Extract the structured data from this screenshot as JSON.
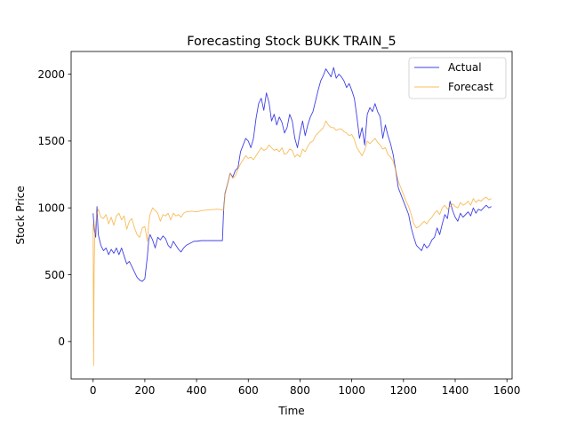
{
  "chart_data": {
    "type": "line",
    "title": "Forecasting Stock BUKK TRAIN_5",
    "xlabel": "Time",
    "ylabel": "Stock Price",
    "xlim": [
      -85,
      1620
    ],
    "ylim": [
      -280,
      2170
    ],
    "xticks": [
      0,
      200,
      400,
      600,
      800,
      1000,
      1200,
      1400,
      1600
    ],
    "yticks": [
      0,
      500,
      1000,
      1500,
      2000
    ],
    "grid": false,
    "legend_position": "top-right",
    "series": [
      {
        "name": "Actual",
        "color": "#0000dd",
        "points": [
          [
            0,
            960
          ],
          [
            5,
            830
          ],
          [
            10,
            780
          ],
          [
            15,
            1010
          ],
          [
            20,
            800
          ],
          [
            30,
            720
          ],
          [
            40,
            680
          ],
          [
            50,
            700
          ],
          [
            60,
            650
          ],
          [
            70,
            690
          ],
          [
            80,
            660
          ],
          [
            90,
            700
          ],
          [
            100,
            650
          ],
          [
            110,
            700
          ],
          [
            120,
            640
          ],
          [
            130,
            580
          ],
          [
            140,
            600
          ],
          [
            150,
            560
          ],
          [
            160,
            520
          ],
          [
            170,
            480
          ],
          [
            180,
            460
          ],
          [
            190,
            450
          ],
          [
            200,
            470
          ],
          [
            210,
            640
          ],
          [
            215,
            760
          ],
          [
            220,
            800
          ],
          [
            230,
            760
          ],
          [
            240,
            700
          ],
          [
            250,
            780
          ],
          [
            260,
            760
          ],
          [
            270,
            790
          ],
          [
            280,
            770
          ],
          [
            290,
            720
          ],
          [
            300,
            700
          ],
          [
            310,
            750
          ],
          [
            320,
            720
          ],
          [
            330,
            690
          ],
          [
            340,
            670
          ],
          [
            350,
            700
          ],
          [
            360,
            720
          ],
          [
            370,
            730
          ],
          [
            380,
            740
          ],
          [
            390,
            750
          ],
          [
            400,
            750
          ],
          [
            420,
            755
          ],
          [
            450,
            755
          ],
          [
            480,
            755
          ],
          [
            500,
            755
          ],
          [
            505,
            1000
          ],
          [
            510,
            1110
          ],
          [
            520,
            1180
          ],
          [
            530,
            1260
          ],
          [
            540,
            1230
          ],
          [
            550,
            1280
          ],
          [
            560,
            1300
          ],
          [
            570,
            1420
          ],
          [
            580,
            1470
          ],
          [
            590,
            1520
          ],
          [
            600,
            1500
          ],
          [
            610,
            1450
          ],
          [
            620,
            1520
          ],
          [
            630,
            1670
          ],
          [
            640,
            1780
          ],
          [
            650,
            1820
          ],
          [
            660,
            1730
          ],
          [
            670,
            1860
          ],
          [
            680,
            1790
          ],
          [
            690,
            1650
          ],
          [
            700,
            1700
          ],
          [
            710,
            1620
          ],
          [
            720,
            1680
          ],
          [
            730,
            1640
          ],
          [
            740,
            1560
          ],
          [
            750,
            1600
          ],
          [
            760,
            1700
          ],
          [
            770,
            1650
          ],
          [
            780,
            1520
          ],
          [
            790,
            1450
          ],
          [
            800,
            1560
          ],
          [
            810,
            1650
          ],
          [
            820,
            1540
          ],
          [
            830,
            1620
          ],
          [
            840,
            1680
          ],
          [
            850,
            1720
          ],
          [
            860,
            1800
          ],
          [
            870,
            1880
          ],
          [
            880,
            1950
          ],
          [
            890,
            1990
          ],
          [
            900,
            2040
          ],
          [
            910,
            2010
          ],
          [
            920,
            1980
          ],
          [
            930,
            2050
          ],
          [
            940,
            1970
          ],
          [
            950,
            2000
          ],
          [
            960,
            1980
          ],
          [
            970,
            1950
          ],
          [
            980,
            1900
          ],
          [
            990,
            1930
          ],
          [
            1000,
            1880
          ],
          [
            1010,
            1820
          ],
          [
            1020,
            1680
          ],
          [
            1030,
            1520
          ],
          [
            1040,
            1600
          ],
          [
            1050,
            1470
          ],
          [
            1060,
            1700
          ],
          [
            1070,
            1750
          ],
          [
            1080,
            1720
          ],
          [
            1090,
            1780
          ],
          [
            1100,
            1720
          ],
          [
            1110,
            1680
          ],
          [
            1120,
            1520
          ],
          [
            1130,
            1620
          ],
          [
            1140,
            1540
          ],
          [
            1150,
            1480
          ],
          [
            1160,
            1400
          ],
          [
            1170,
            1280
          ],
          [
            1180,
            1150
          ],
          [
            1190,
            1100
          ],
          [
            1200,
            1050
          ],
          [
            1210,
            1000
          ],
          [
            1220,
            950
          ],
          [
            1230,
            850
          ],
          [
            1240,
            780
          ],
          [
            1250,
            720
          ],
          [
            1260,
            700
          ],
          [
            1270,
            680
          ],
          [
            1280,
            730
          ],
          [
            1290,
            700
          ],
          [
            1300,
            720
          ],
          [
            1310,
            760
          ],
          [
            1320,
            780
          ],
          [
            1330,
            850
          ],
          [
            1340,
            800
          ],
          [
            1350,
            880
          ],
          [
            1360,
            950
          ],
          [
            1370,
            920
          ],
          [
            1380,
            1050
          ],
          [
            1390,
            980
          ],
          [
            1400,
            930
          ],
          [
            1410,
            900
          ],
          [
            1420,
            960
          ],
          [
            1430,
            930
          ],
          [
            1440,
            950
          ],
          [
            1450,
            970
          ],
          [
            1460,
            940
          ],
          [
            1470,
            1000
          ],
          [
            1480,
            960
          ],
          [
            1490,
            990
          ],
          [
            1500,
            980
          ],
          [
            1510,
            1000
          ],
          [
            1520,
            1020
          ],
          [
            1530,
            1000
          ],
          [
            1540,
            1010
          ]
        ]
      },
      {
        "name": "Forecast",
        "color": "#f5a623",
        "points": [
          [
            0,
            880
          ],
          [
            2,
            -180
          ],
          [
            4,
            530
          ],
          [
            6,
            780
          ],
          [
            10,
            880
          ],
          [
            15,
            960
          ],
          [
            20,
            990
          ],
          [
            30,
            930
          ],
          [
            40,
            920
          ],
          [
            50,
            950
          ],
          [
            60,
            880
          ],
          [
            70,
            930
          ],
          [
            80,
            870
          ],
          [
            90,
            940
          ],
          [
            100,
            960
          ],
          [
            110,
            910
          ],
          [
            120,
            940
          ],
          [
            130,
            840
          ],
          [
            140,
            900
          ],
          [
            150,
            920
          ],
          [
            160,
            850
          ],
          [
            170,
            800
          ],
          [
            180,
            780
          ],
          [
            190,
            850
          ],
          [
            200,
            860
          ],
          [
            210,
            750
          ],
          [
            215,
            880
          ],
          [
            220,
            950
          ],
          [
            230,
            1000
          ],
          [
            240,
            980
          ],
          [
            250,
            960
          ],
          [
            260,
            900
          ],
          [
            270,
            950
          ],
          [
            280,
            940
          ],
          [
            290,
            960
          ],
          [
            300,
            910
          ],
          [
            310,
            960
          ],
          [
            320,
            940
          ],
          [
            330,
            950
          ],
          [
            340,
            930
          ],
          [
            350,
            960
          ],
          [
            360,
            970
          ],
          [
            380,
            975
          ],
          [
            400,
            970
          ],
          [
            420,
            980
          ],
          [
            450,
            985
          ],
          [
            480,
            990
          ],
          [
            500,
            985
          ],
          [
            505,
            980
          ],
          [
            510,
            1100
          ],
          [
            520,
            1180
          ],
          [
            530,
            1260
          ],
          [
            540,
            1220
          ],
          [
            550,
            1240
          ],
          [
            560,
            1290
          ],
          [
            570,
            1330
          ],
          [
            580,
            1360
          ],
          [
            590,
            1390
          ],
          [
            600,
            1370
          ],
          [
            610,
            1380
          ],
          [
            620,
            1360
          ],
          [
            630,
            1390
          ],
          [
            640,
            1420
          ],
          [
            650,
            1450
          ],
          [
            660,
            1430
          ],
          [
            670,
            1440
          ],
          [
            680,
            1470
          ],
          [
            690,
            1450
          ],
          [
            700,
            1430
          ],
          [
            710,
            1440
          ],
          [
            720,
            1420
          ],
          [
            730,
            1450
          ],
          [
            740,
            1400
          ],
          [
            750,
            1410
          ],
          [
            760,
            1440
          ],
          [
            770,
            1430
          ],
          [
            780,
            1380
          ],
          [
            790,
            1400
          ],
          [
            800,
            1380
          ],
          [
            810,
            1440
          ],
          [
            820,
            1420
          ],
          [
            830,
            1460
          ],
          [
            840,
            1490
          ],
          [
            850,
            1500
          ],
          [
            860,
            1540
          ],
          [
            870,
            1560
          ],
          [
            880,
            1580
          ],
          [
            890,
            1600
          ],
          [
            900,
            1650
          ],
          [
            910,
            1620
          ],
          [
            920,
            1600
          ],
          [
            930,
            1600
          ],
          [
            940,
            1580
          ],
          [
            950,
            1590
          ],
          [
            960,
            1590
          ],
          [
            970,
            1570
          ],
          [
            980,
            1560
          ],
          [
            990,
            1540
          ],
          [
            1000,
            1550
          ],
          [
            1010,
            1510
          ],
          [
            1020,
            1450
          ],
          [
            1030,
            1420
          ],
          [
            1040,
            1390
          ],
          [
            1050,
            1430
          ],
          [
            1060,
            1500
          ],
          [
            1070,
            1480
          ],
          [
            1080,
            1500
          ],
          [
            1090,
            1520
          ],
          [
            1100,
            1490
          ],
          [
            1110,
            1470
          ],
          [
            1120,
            1440
          ],
          [
            1130,
            1450
          ],
          [
            1140,
            1400
          ],
          [
            1150,
            1380
          ],
          [
            1160,
            1350
          ],
          [
            1170,
            1280
          ],
          [
            1180,
            1200
          ],
          [
            1190,
            1150
          ],
          [
            1200,
            1100
          ],
          [
            1210,
            1050
          ],
          [
            1220,
            1010
          ],
          [
            1230,
            950
          ],
          [
            1240,
            880
          ],
          [
            1250,
            850
          ],
          [
            1260,
            860
          ],
          [
            1270,
            880
          ],
          [
            1280,
            900
          ],
          [
            1290,
            880
          ],
          [
            1300,
            910
          ],
          [
            1310,
            930
          ],
          [
            1320,
            960
          ],
          [
            1330,
            980
          ],
          [
            1340,
            950
          ],
          [
            1350,
            1000
          ],
          [
            1360,
            1020
          ],
          [
            1370,
            990
          ],
          [
            1380,
            1010
          ],
          [
            1390,
            1030
          ],
          [
            1400,
            1010
          ],
          [
            1410,
            1000
          ],
          [
            1420,
            1040
          ],
          [
            1430,
            1020
          ],
          [
            1440,
            1030
          ],
          [
            1450,
            1050
          ],
          [
            1460,
            1020
          ],
          [
            1470,
            1070
          ],
          [
            1480,
            1040
          ],
          [
            1490,
            1060
          ],
          [
            1500,
            1050
          ],
          [
            1510,
            1070
          ],
          [
            1520,
            1080
          ],
          [
            1530,
            1060
          ],
          [
            1540,
            1070
          ]
        ]
      }
    ]
  }
}
